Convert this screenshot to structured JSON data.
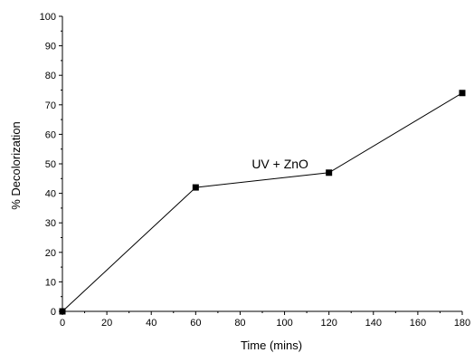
{
  "chart_data": {
    "type": "line",
    "xlabel": "Time (mins)",
    "ylabel": "% Decolorization",
    "xlim": [
      0,
      180
    ],
    "ylim": [
      0,
      100
    ],
    "xticks": [
      0,
      20,
      40,
      60,
      80,
      100,
      120,
      140,
      160,
      180
    ],
    "yticks": [
      0,
      10,
      20,
      30,
      40,
      50,
      60,
      70,
      80,
      90,
      100
    ],
    "grid": false,
    "marker": "square",
    "line_color": "#000000",
    "series": [
      {
        "x": [
          0,
          60,
          120,
          180
        ],
        "y": [
          0,
          42,
          47,
          74
        ]
      }
    ],
    "annotations": [
      {
        "text": "UV + ZnO",
        "x": 98,
        "y": 50
      }
    ]
  }
}
